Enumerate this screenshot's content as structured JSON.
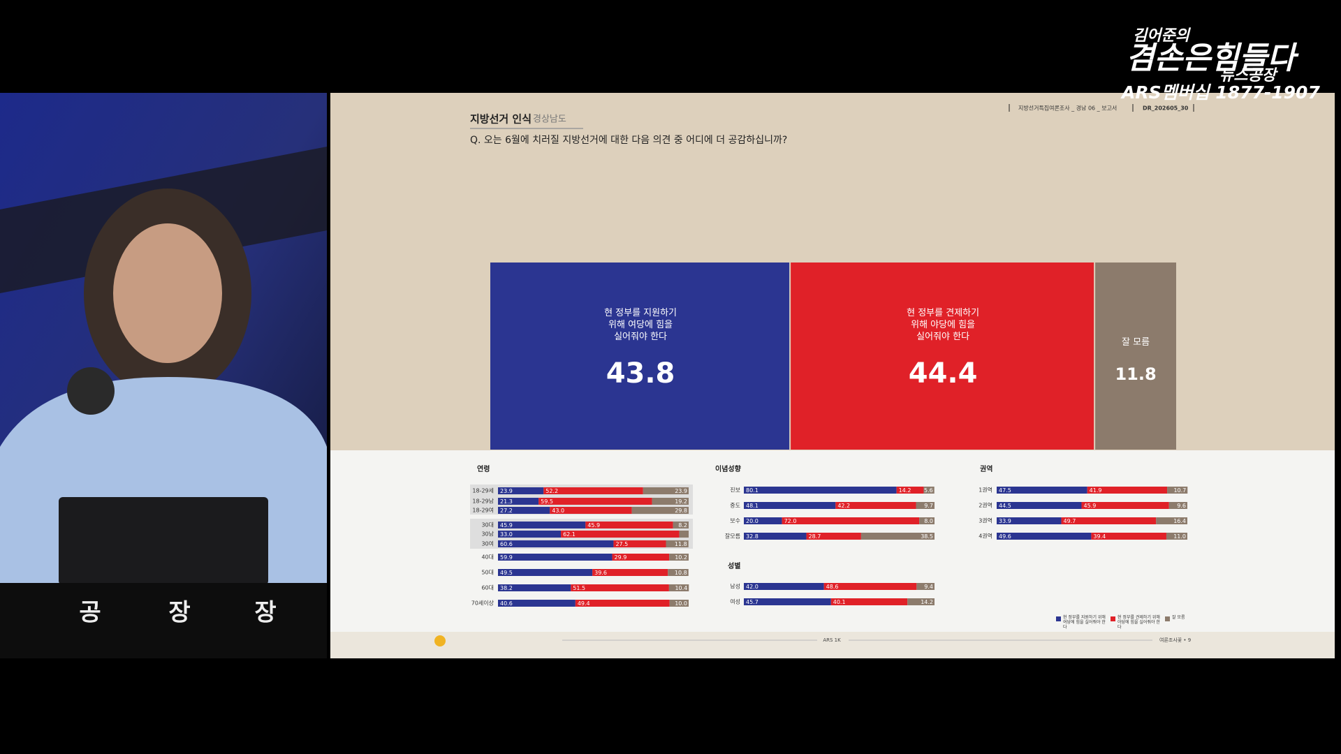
{
  "broadcast": {
    "logo_small": "김어준의",
    "logo_main": "겸손은힘들다",
    "logo_sub": "뉴스공장",
    "phone": "ARS멤버십 1877-1907",
    "desk_sign": [
      "공",
      "장",
      "장"
    ]
  },
  "header": {
    "section": "지방선거 인식",
    "region": "경상남도",
    "question": "Q. 오는 6월에 치러질 지방선거에 대한 다음 의견 중 어디에 더 공감하십니까?",
    "report": "지방선거특집여론조사 _ 경남 06 _ 보고서",
    "code": "DR_202605_30"
  },
  "footer": {
    "center": "ARS 1K",
    "right": "여론조사꽃 • 9"
  },
  "chart_data": [
    {
      "type": "bar",
      "stacked": true,
      "orientation": "horizontal",
      "xlim": [
        0,
        100
      ],
      "series": [
        {
          "name": "현 정부를 지원하기 위해 여당에 힘을 실어줘야 한다",
          "color": "#2b3591",
          "values": [
            43.8
          ]
        },
        {
          "name": "현 정부를 견제하기 위해 야당에 힘을 실어줘야 한다",
          "color": "#e02128",
          "values": [
            44.4
          ]
        },
        {
          "name": "잘 모름",
          "color": "#8c7b6c",
          "values": [
            11.8
          ]
        }
      ]
    },
    {
      "type": "bar",
      "stacked": true,
      "orientation": "horizontal",
      "xlim": [
        0,
        100
      ],
      "title": "연령",
      "categories": [
        "18-29세",
        "18-29남",
        "18-29여",
        "30대",
        "30남",
        "30여",
        "40대",
        "50대",
        "60대",
        "70세이상"
      ],
      "series": [
        {
          "values": [
            23.9,
            21.3,
            27.2,
            45.9,
            33.0,
            60.6,
            59.9,
            49.5,
            38.2,
            40.6
          ],
          "value_labels": [
            "23.9",
            "21.3",
            "27.2",
            "45.9",
            "33.0",
            "60.6",
            "59.9",
            "49.5",
            "38.2",
            "40.6"
          ]
        },
        {
          "values": [
            52.2,
            59.5,
            43.0,
            45.9,
            62.1,
            27.5,
            29.9,
            39.6,
            51.5,
            49.4
          ],
          "value_labels": [
            "52.2",
            "59.5",
            "43.0",
            "45.9",
            "62.1",
            "27.5",
            "29.9",
            "39.6",
            "51.5",
            "49.4"
          ]
        },
        {
          "values": [
            23.9,
            19.2,
            29.8,
            8.2,
            4.9,
            11.8,
            10.2,
            10.8,
            10.4,
            10.0
          ],
          "value_labels": [
            "23.9",
            "19.2",
            "29.8",
            "8.2",
            null,
            "11.8",
            "10.2",
            "10.8",
            "10.4",
            "10.0"
          ]
        }
      ]
    },
    {
      "type": "bar",
      "stacked": true,
      "orientation": "horizontal",
      "xlim": [
        0,
        100
      ],
      "title": "이념성향",
      "categories": [
        "진보",
        "중도",
        "보수",
        "잘모름"
      ],
      "series": [
        {
          "values": [
            80.1,
            48.1,
            20.0,
            32.8
          ],
          "value_labels": [
            "80.1",
            "48.1",
            "20.0",
            "32.8"
          ]
        },
        {
          "values": [
            14.2,
            42.2,
            72.0,
            28.7
          ],
          "value_labels": [
            "14.2",
            "42.2",
            "72.0",
            "28.7"
          ]
        },
        {
          "values": [
            5.6,
            9.7,
            8.0,
            38.5
          ],
          "value_labels": [
            "5.6",
            "9.7",
            "8.0",
            "38.5"
          ]
        }
      ]
    },
    {
      "type": "bar",
      "stacked": true,
      "orientation": "horizontal",
      "xlim": [
        0,
        100
      ],
      "title": "성별",
      "categories": [
        "남성",
        "여성"
      ],
      "series": [
        {
          "values": [
            42.0,
            45.7
          ],
          "value_labels": [
            "42.0",
            "45.7"
          ]
        },
        {
          "values": [
            48.6,
            40.1
          ],
          "value_labels": [
            "48.6",
            "40.1"
          ]
        },
        {
          "values": [
            9.4,
            14.2
          ],
          "value_labels": [
            "9.4",
            "14.2"
          ]
        }
      ]
    },
    {
      "type": "bar",
      "stacked": true,
      "orientation": "horizontal",
      "xlim": [
        0,
        100
      ],
      "title": "권역",
      "categories": [
        "1권역",
        "2권역",
        "3권역",
        "4권역"
      ],
      "series": [
        {
          "values": [
            47.5,
            44.5,
            33.9,
            49.6
          ],
          "value_labels": [
            "47.5",
            "44.5",
            "33.9",
            "49.6"
          ]
        },
        {
          "values": [
            41.9,
            45.9,
            49.7,
            39.4
          ],
          "value_labels": [
            "41.9",
            "45.9",
            "49.7",
            "39.4"
          ]
        },
        {
          "values": [
            10.7,
            9.6,
            16.4,
            11.0
          ],
          "value_labels": [
            "10.7",
            "9.6",
            "16.4",
            "11.0"
          ]
        }
      ]
    }
  ]
}
